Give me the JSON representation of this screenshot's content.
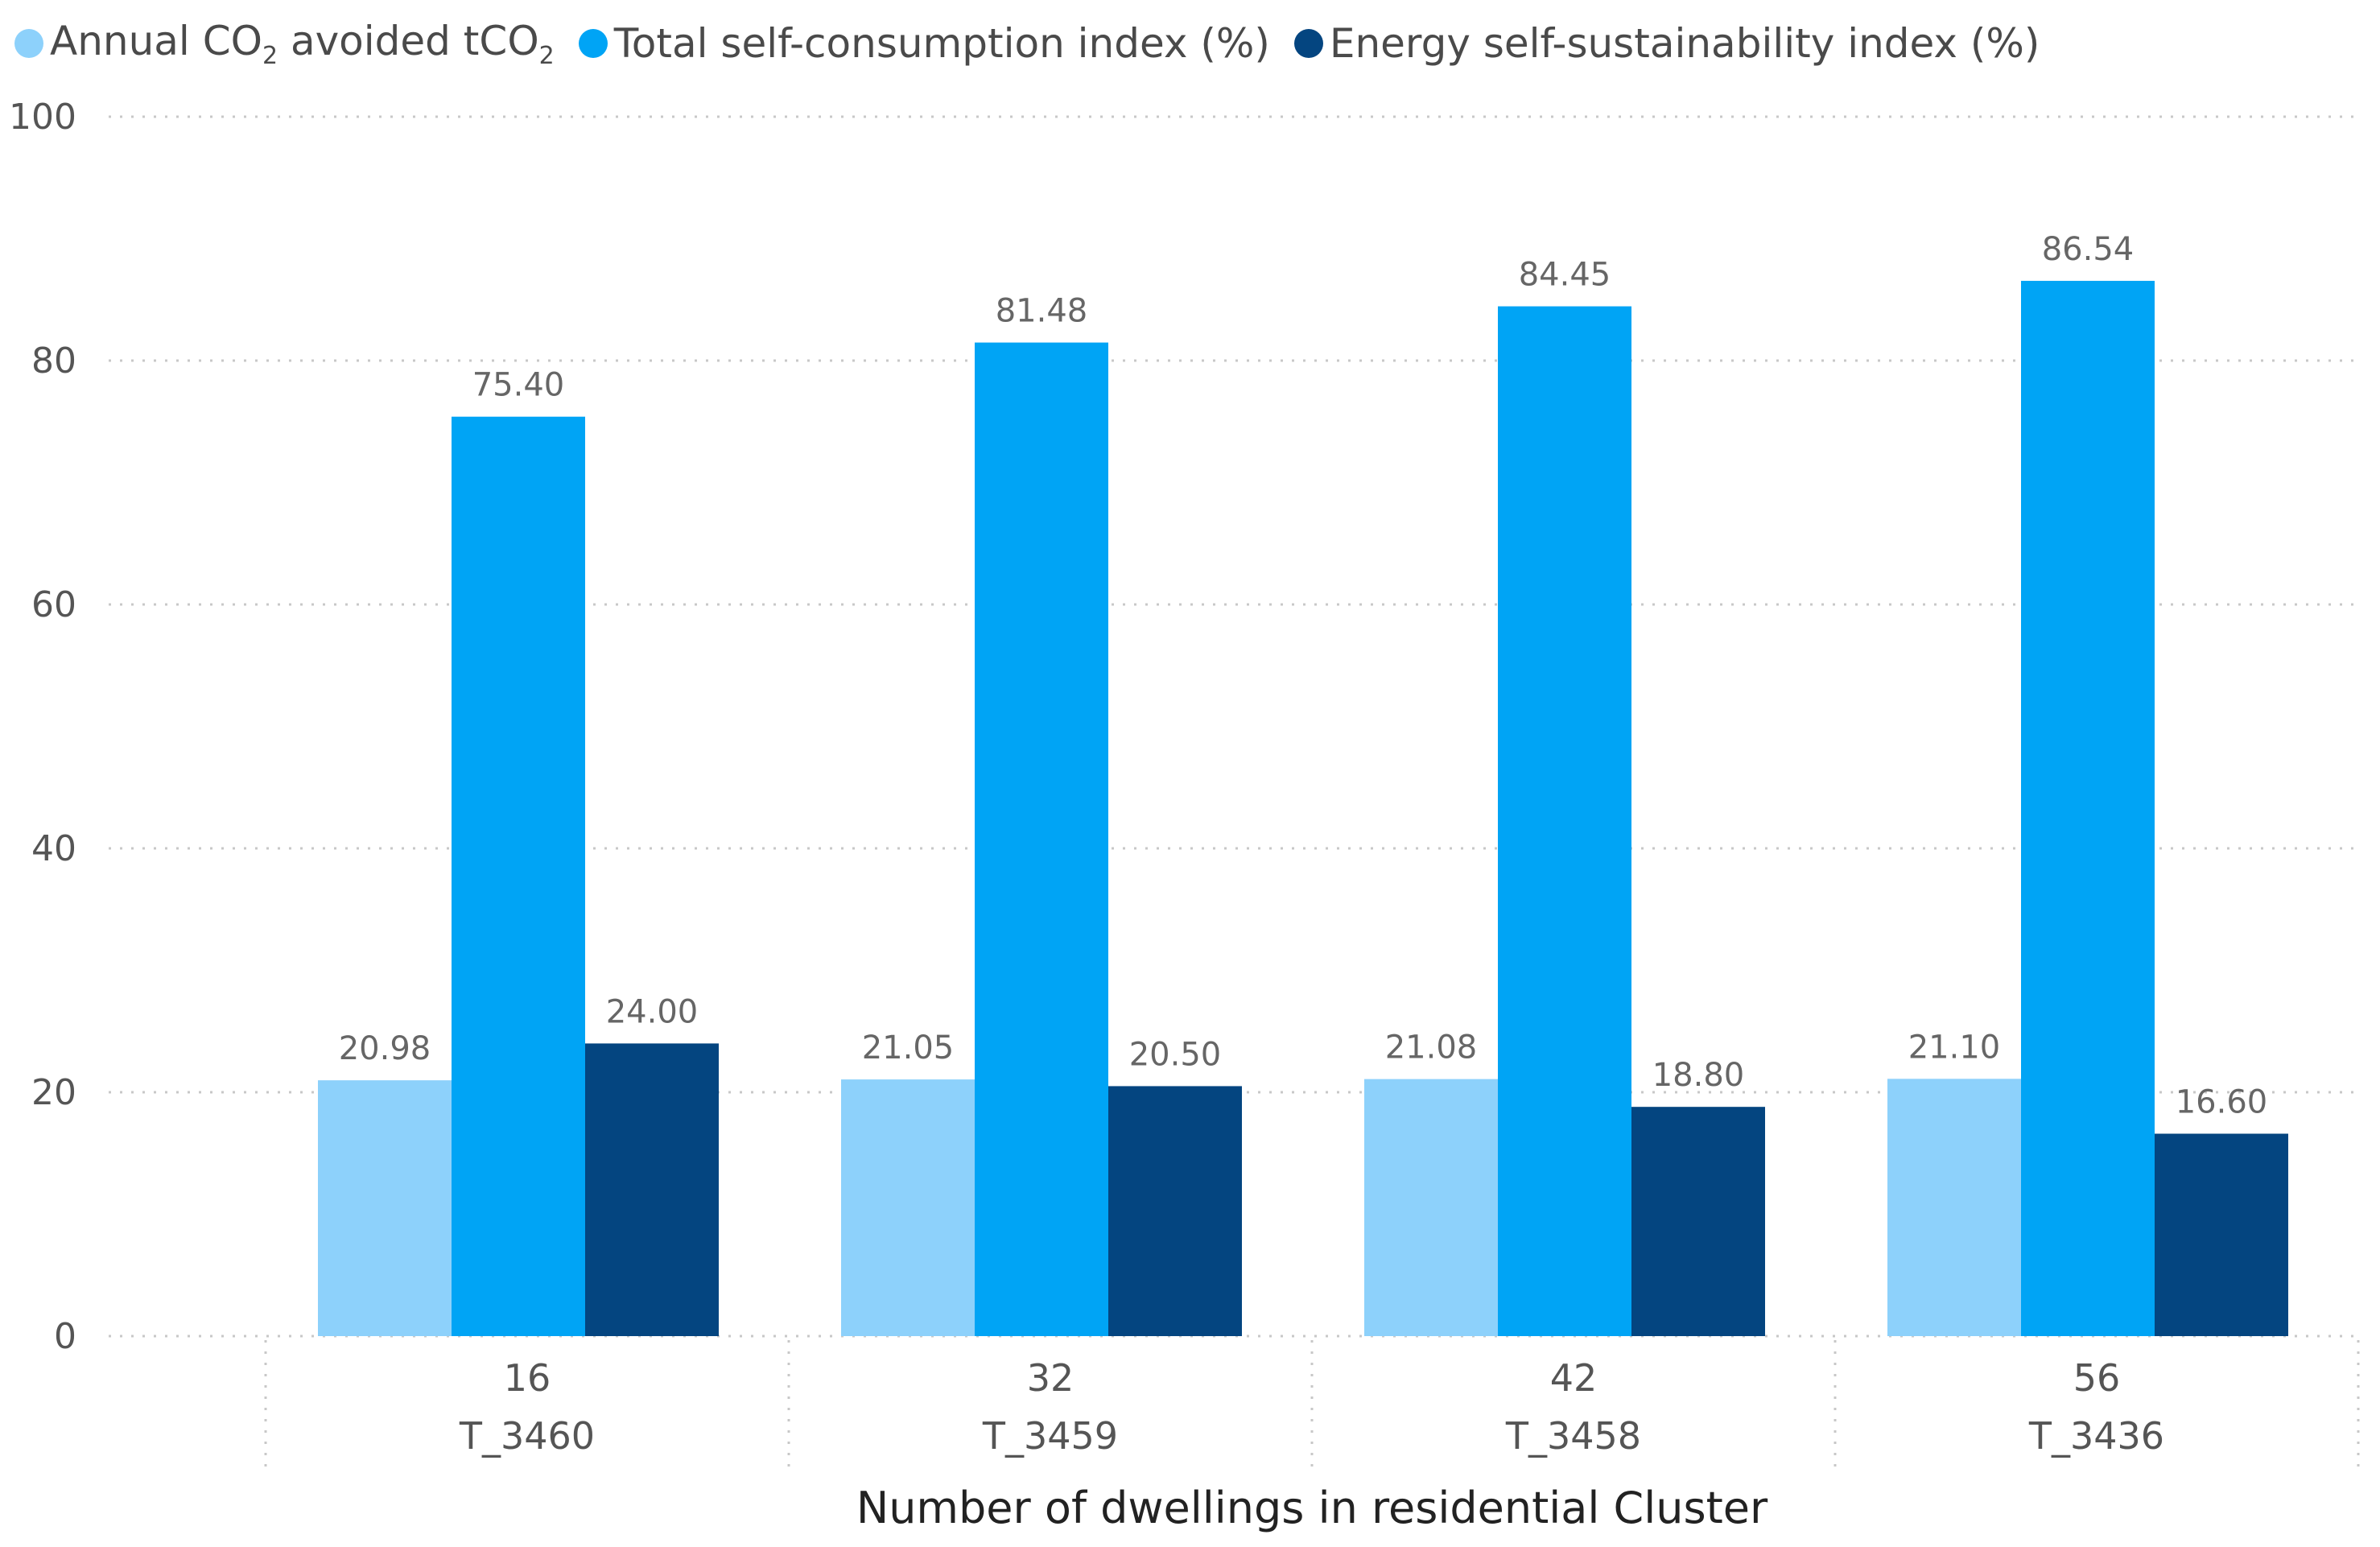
{
  "chart_data": {
    "type": "bar",
    "title": "",
    "xlabel": "Number of dwellings in residential Cluster",
    "ylabel": "",
    "ylim": [
      0,
      100
    ],
    "yticks": [
      0,
      20,
      40,
      60,
      80,
      100
    ],
    "grid": true,
    "legend_position": "top-left",
    "categories": [
      {
        "count": "16",
        "cluster": "T_3460"
      },
      {
        "count": "32",
        "cluster": "T_3459"
      },
      {
        "count": "42",
        "cluster": "T_3458"
      },
      {
        "count": "56",
        "cluster": "T_3436"
      }
    ],
    "series": [
      {
        "name": "Annual CO2 avoided tCO2",
        "color": "#8dd1fb",
        "values": [
          20.98,
          21.05,
          21.08,
          21.1
        ]
      },
      {
        "name": "Total self-consumption index (%)",
        "color": "#00a4f5",
        "values": [
          75.4,
          81.48,
          84.45,
          86.54
        ]
      },
      {
        "name": "Energy self-sustainability index (%)",
        "color": "#044580",
        "values": [
          24.0,
          20.5,
          18.8,
          16.6
        ]
      }
    ],
    "value_labels": [
      [
        "20.98",
        "21.05",
        "21.08",
        "21.10"
      ],
      [
        "75.40",
        "81.48",
        "84.45",
        "86.54"
      ],
      [
        "24.00",
        "20.50",
        "18.80",
        "16.60"
      ]
    ]
  },
  "legend": {
    "items": [
      {
        "prefix": "Annual CO",
        "sub1": "2",
        "middle": " avoided tCO",
        "sub2": "2",
        "color": "#8dd1fb"
      },
      {
        "text": "Total self-consumption index (%)",
        "color": "#00a4f5"
      },
      {
        "text": "Energy self-sustainability index (%)",
        "color": "#044580"
      }
    ]
  }
}
